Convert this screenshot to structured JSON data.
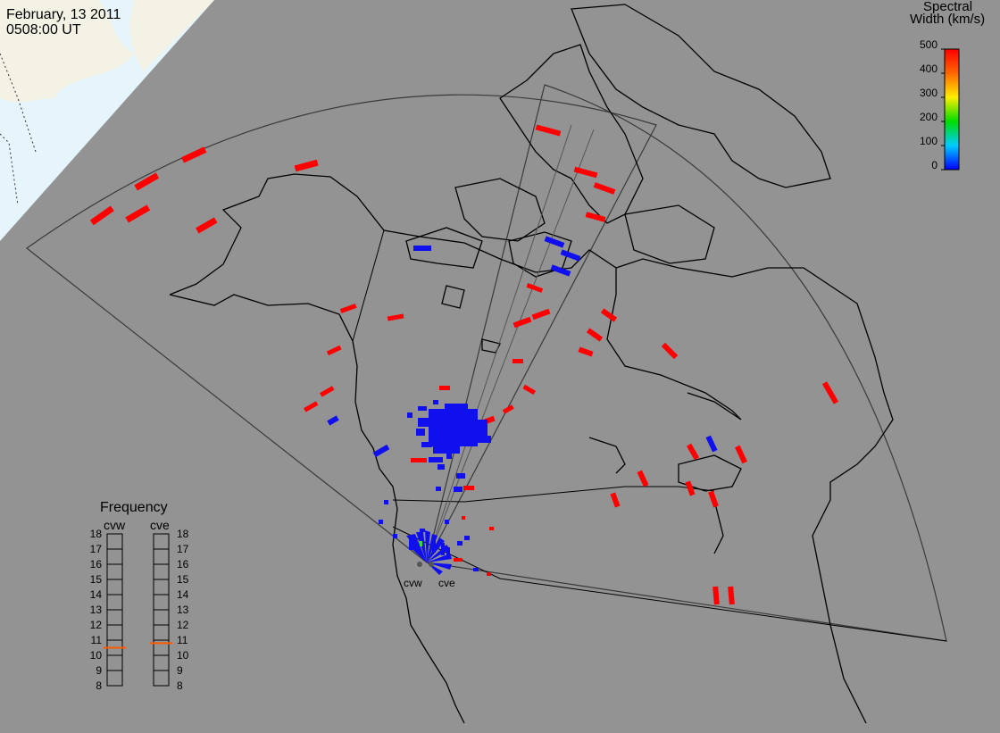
{
  "header": {
    "date": "February, 13 2011",
    "time": "0508:00 UT"
  },
  "colorbar": {
    "title_line1": "Spectral",
    "title_line2": "Width (km/s)",
    "ticks": [
      "500",
      "400",
      "300",
      "200",
      "100",
      "0"
    ]
  },
  "frequency": {
    "title": "Frequency",
    "radars": [
      {
        "label": "cvw",
        "value_mhz": 10.5
      },
      {
        "label": "cve",
        "value_mhz": 10.8
      }
    ],
    "scale": [
      "18",
      "17",
      "16",
      "15",
      "14",
      "13",
      "12",
      "11",
      "10",
      "9",
      "8"
    ]
  },
  "radar_sites": [
    {
      "label": "cvw"
    },
    {
      "label": "cve"
    }
  ],
  "colors": {
    "ocean": "#939393",
    "daylight": "#e6f5fc",
    "land_day": "#f4f2e4",
    "coast": "#000000",
    "fov": "#3a3a3a",
    "red": "#ff0000",
    "blue": "#1010ee",
    "freq_marker": "#ff5a00"
  }
}
